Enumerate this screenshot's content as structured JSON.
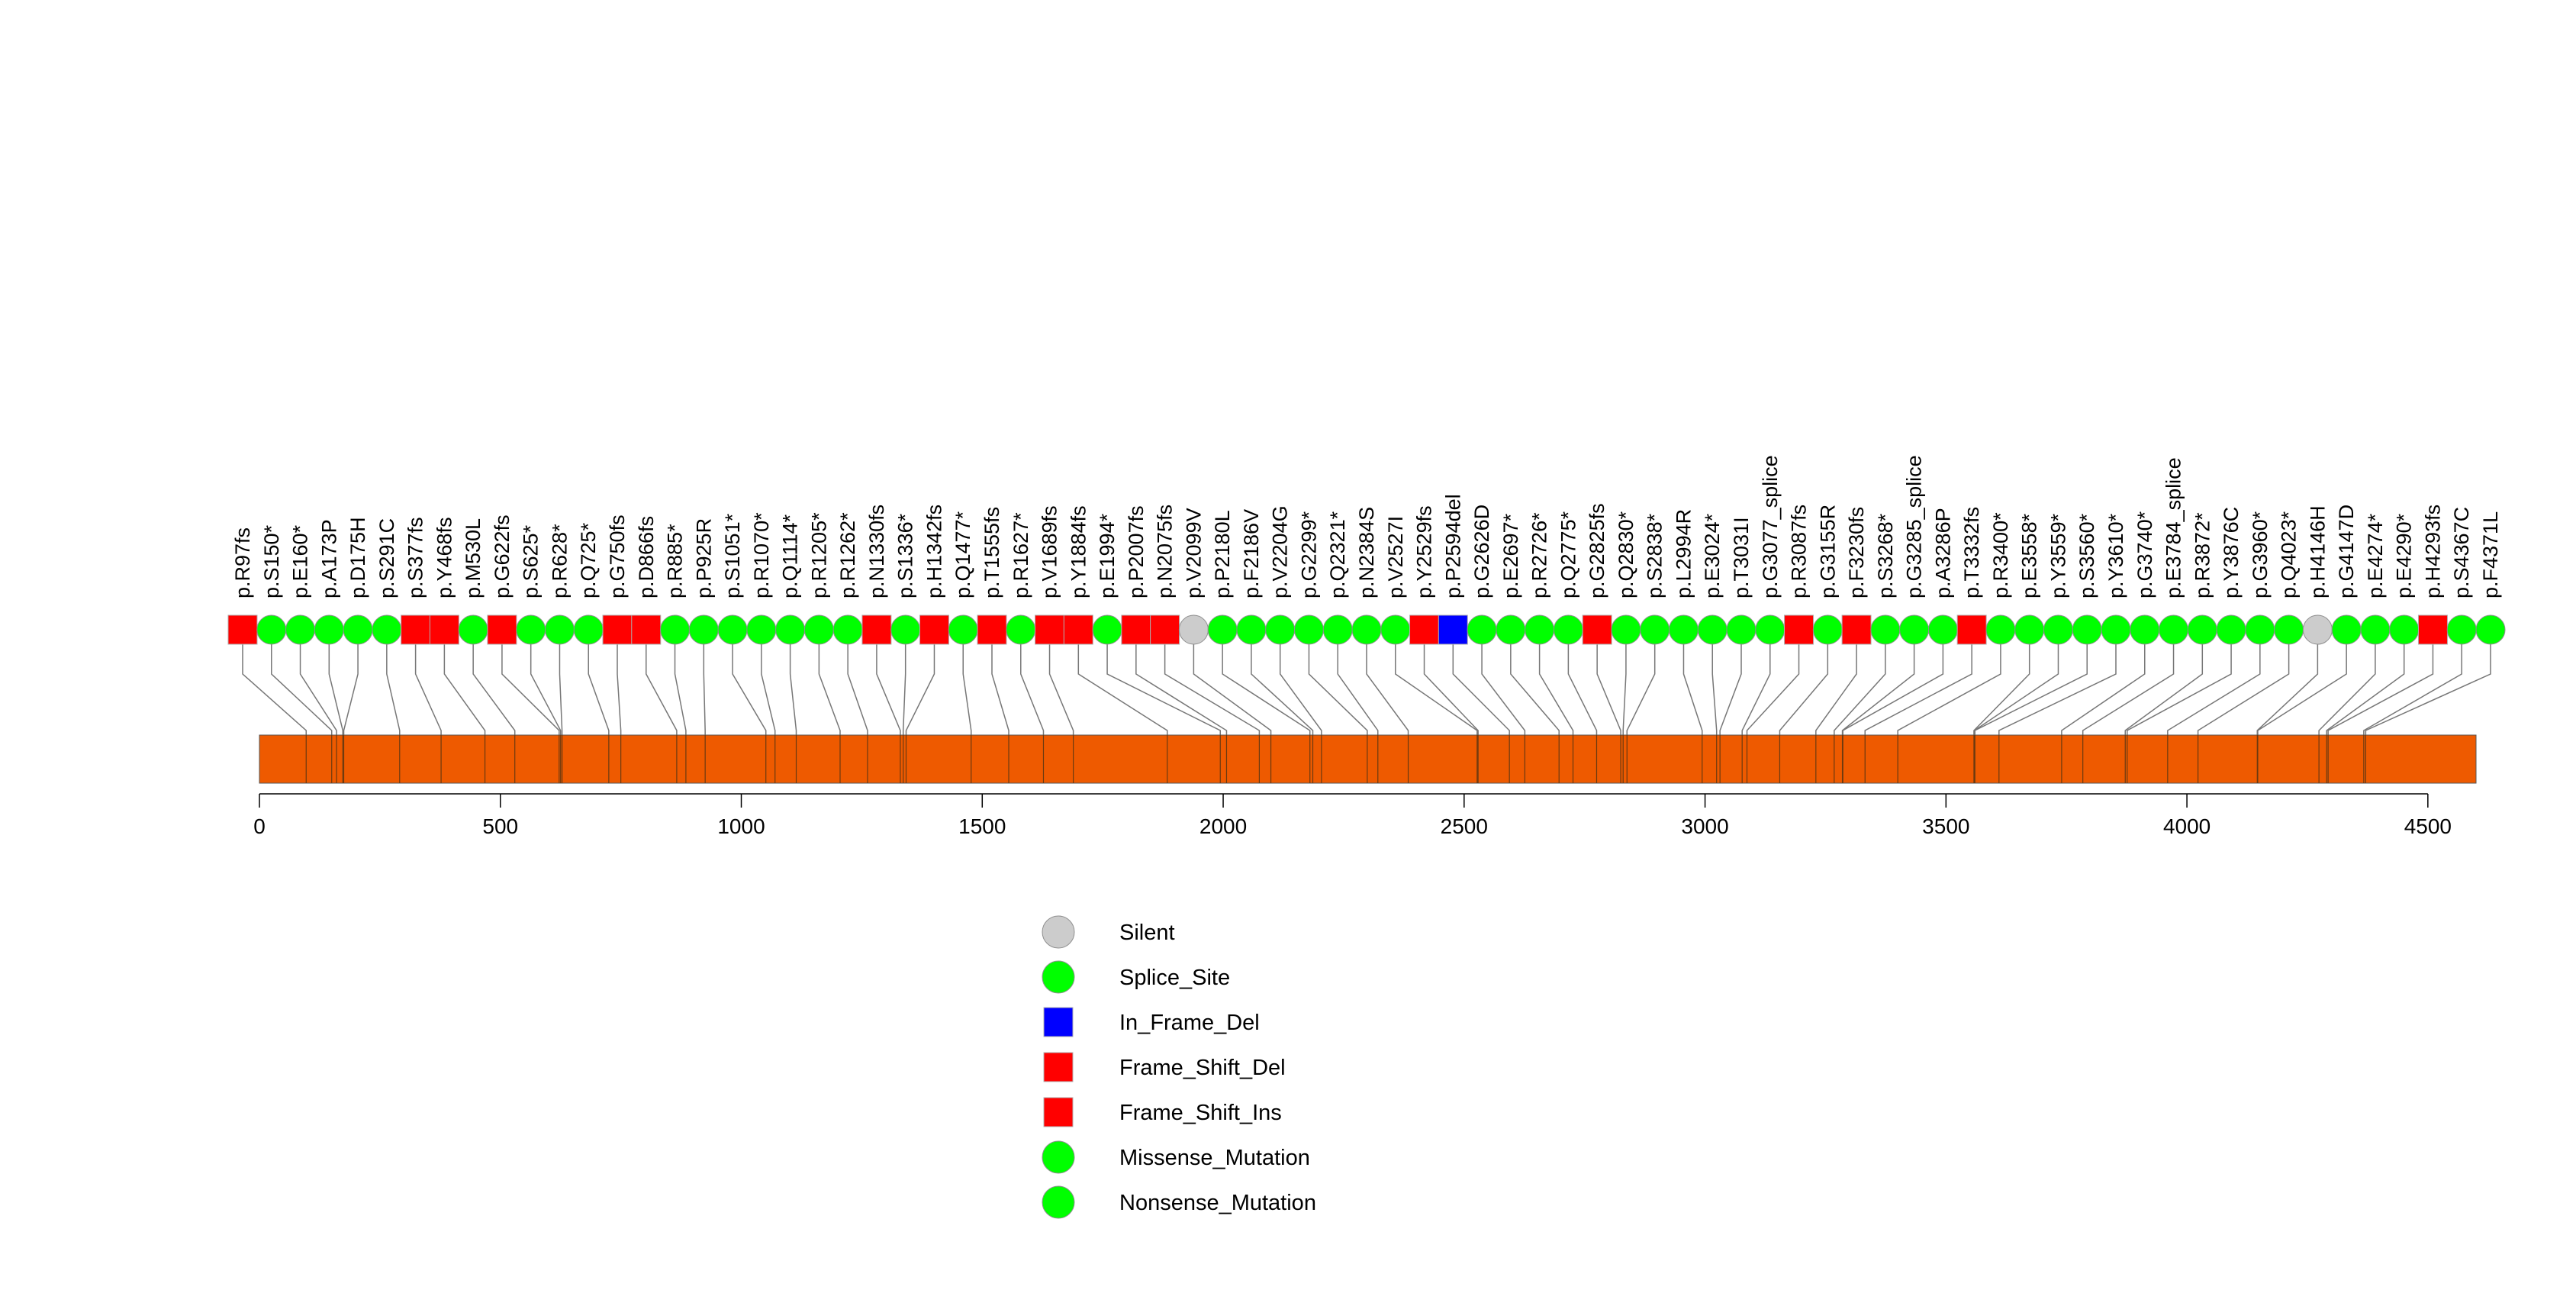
{
  "chart_data": {
    "type": "lollipop",
    "protein_length_bar": {
      "start": 0,
      "end": 4600,
      "color": "#ee5a00"
    },
    "x_axis": {
      "ticks": [
        0,
        500,
        1000,
        1500,
        2000,
        2500,
        3000,
        3500,
        4000,
        4500
      ],
      "xlim": [
        0,
        4600
      ]
    },
    "categories": {
      "Silent": {
        "shape": "circle",
        "color": "#cccccc"
      },
      "Splice_Site": {
        "shape": "circle",
        "color": "#00ff00"
      },
      "In_Frame_Del": {
        "shape": "square",
        "color": "#0000ff"
      },
      "Frame_Shift_Del": {
        "shape": "square",
        "color": "#ff0000"
      },
      "Frame_Shift_Ins": {
        "shape": "square",
        "color": "#ff0000"
      },
      "Missense_Mutation": {
        "shape": "circle",
        "color": "#00ff00"
      },
      "Nonsense_Mutation": {
        "shape": "circle",
        "color": "#00ff00"
      }
    },
    "legend": [
      "Silent",
      "Splice_Site",
      "In_Frame_Del",
      "Frame_Shift_Del",
      "Frame_Shift_Ins",
      "Missense_Mutation",
      "Nonsense_Mutation"
    ],
    "mutations": [
      {
        "label": "p.R97fs",
        "pos": 97,
        "type": "Frame_Shift_Del"
      },
      {
        "label": "p.S150*",
        "pos": 150,
        "type": "Nonsense_Mutation"
      },
      {
        "label": "p.E160*",
        "pos": 160,
        "type": "Nonsense_Mutation"
      },
      {
        "label": "p.A173P",
        "pos": 173,
        "type": "Missense_Mutation"
      },
      {
        "label": "p.D175H",
        "pos": 175,
        "type": "Missense_Mutation"
      },
      {
        "label": "p.S291C",
        "pos": 291,
        "type": "Missense_Mutation"
      },
      {
        "label": "p.S377fs",
        "pos": 377,
        "type": "Frame_Shift_Del"
      },
      {
        "label": "p.Y468fs",
        "pos": 468,
        "type": "Frame_Shift_Del"
      },
      {
        "label": "p.M530L",
        "pos": 530,
        "type": "Missense_Mutation"
      },
      {
        "label": "p.G622fs",
        "pos": 622,
        "type": "Frame_Shift_Del"
      },
      {
        "label": "p.S625*",
        "pos": 625,
        "type": "Nonsense_Mutation"
      },
      {
        "label": "p.R628*",
        "pos": 628,
        "type": "Nonsense_Mutation"
      },
      {
        "label": "p.Q725*",
        "pos": 725,
        "type": "Nonsense_Mutation"
      },
      {
        "label": "p.G750fs",
        "pos": 750,
        "type": "Frame_Shift_Del"
      },
      {
        "label": "p.D866fs",
        "pos": 866,
        "type": "Frame_Shift_Del"
      },
      {
        "label": "p.R885*",
        "pos": 885,
        "type": "Nonsense_Mutation"
      },
      {
        "label": "p.P925R",
        "pos": 925,
        "type": "Missense_Mutation"
      },
      {
        "label": "p.S1051*",
        "pos": 1051,
        "type": "Nonsense_Mutation"
      },
      {
        "label": "p.R1070*",
        "pos": 1070,
        "type": "Nonsense_Mutation"
      },
      {
        "label": "p.Q1114*",
        "pos": 1114,
        "type": "Nonsense_Mutation"
      },
      {
        "label": "p.R1205*",
        "pos": 1205,
        "type": "Nonsense_Mutation"
      },
      {
        "label": "p.R1262*",
        "pos": 1262,
        "type": "Nonsense_Mutation"
      },
      {
        "label": "p.N1330fs",
        "pos": 1330,
        "type": "Frame_Shift_Del"
      },
      {
        "label": "p.S1336*",
        "pos": 1336,
        "type": "Nonsense_Mutation"
      },
      {
        "label": "p.H1342fs",
        "pos": 1342,
        "type": "Frame_Shift_Del"
      },
      {
        "label": "p.Q1477*",
        "pos": 1477,
        "type": "Nonsense_Mutation"
      },
      {
        "label": "p.T1555fs",
        "pos": 1555,
        "type": "Frame_Shift_Del"
      },
      {
        "label": "p.R1627*",
        "pos": 1627,
        "type": "Nonsense_Mutation"
      },
      {
        "label": "p.V1689fs",
        "pos": 1689,
        "type": "Frame_Shift_Del"
      },
      {
        "label": "p.Y1884fs",
        "pos": 1884,
        "type": "Frame_Shift_Del"
      },
      {
        "label": "p.E1994*",
        "pos": 1994,
        "type": "Nonsense_Mutation"
      },
      {
        "label": "p.P2007fs",
        "pos": 2007,
        "type": "Frame_Shift_Del"
      },
      {
        "label": "p.N2075fs",
        "pos": 2075,
        "type": "Frame_Shift_Del"
      },
      {
        "label": "p.V2099V",
        "pos": 2099,
        "type": "Silent"
      },
      {
        "label": "p.P2180L",
        "pos": 2180,
        "type": "Missense_Mutation"
      },
      {
        "label": "p.F2186V",
        "pos": 2186,
        "type": "Missense_Mutation"
      },
      {
        "label": "p.V2204G",
        "pos": 2204,
        "type": "Missense_Mutation"
      },
      {
        "label": "p.G2299*",
        "pos": 2299,
        "type": "Nonsense_Mutation"
      },
      {
        "label": "p.Q2321*",
        "pos": 2321,
        "type": "Nonsense_Mutation"
      },
      {
        "label": "p.N2384S",
        "pos": 2384,
        "type": "Missense_Mutation"
      },
      {
        "label": "p.V2527I",
        "pos": 2527,
        "type": "Missense_Mutation"
      },
      {
        "label": "p.Y2529fs",
        "pos": 2529,
        "type": "Frame_Shift_Del"
      },
      {
        "label": "p.P2594del",
        "pos": 2594,
        "type": "In_Frame_Del"
      },
      {
        "label": "p.G2626D",
        "pos": 2626,
        "type": "Missense_Mutation"
      },
      {
        "label": "p.E2697*",
        "pos": 2697,
        "type": "Nonsense_Mutation"
      },
      {
        "label": "p.R2726*",
        "pos": 2726,
        "type": "Nonsense_Mutation"
      },
      {
        "label": "p.Q2775*",
        "pos": 2775,
        "type": "Nonsense_Mutation"
      },
      {
        "label": "p.G2825fs",
        "pos": 2825,
        "type": "Frame_Shift_Del"
      },
      {
        "label": "p.Q2830*",
        "pos": 2830,
        "type": "Nonsense_Mutation"
      },
      {
        "label": "p.S2838*",
        "pos": 2838,
        "type": "Nonsense_Mutation"
      },
      {
        "label": "p.L2994R",
        "pos": 2994,
        "type": "Missense_Mutation"
      },
      {
        "label": "p.E3024*",
        "pos": 3024,
        "type": "Nonsense_Mutation"
      },
      {
        "label": "p.T3031I",
        "pos": 3031,
        "type": "Missense_Mutation"
      },
      {
        "label": "p.G3077_splice",
        "pos": 3077,
        "type": "Splice_Site"
      },
      {
        "label": "p.R3087fs",
        "pos": 3087,
        "type": "Frame_Shift_Del"
      },
      {
        "label": "p.G3155R",
        "pos": 3155,
        "type": "Missense_Mutation"
      },
      {
        "label": "p.F3230fs",
        "pos": 3230,
        "type": "Frame_Shift_Del"
      },
      {
        "label": "p.S3268*",
        "pos": 3268,
        "type": "Nonsense_Mutation"
      },
      {
        "label": "p.G3285_splice",
        "pos": 3285,
        "type": "Splice_Site"
      },
      {
        "label": "p.A3286P",
        "pos": 3286,
        "type": "Missense_Mutation"
      },
      {
        "label": "p.T3332fs",
        "pos": 3332,
        "type": "Frame_Shift_Del"
      },
      {
        "label": "p.R3400*",
        "pos": 3400,
        "type": "Nonsense_Mutation"
      },
      {
        "label": "p.E3558*",
        "pos": 3558,
        "type": "Nonsense_Mutation"
      },
      {
        "label": "p.Y3559*",
        "pos": 3559,
        "type": "Nonsense_Mutation"
      },
      {
        "label": "p.S3560*",
        "pos": 3560,
        "type": "Nonsense_Mutation"
      },
      {
        "label": "p.Y3610*",
        "pos": 3610,
        "type": "Nonsense_Mutation"
      },
      {
        "label": "p.G3740*",
        "pos": 3740,
        "type": "Nonsense_Mutation"
      },
      {
        "label": "p.E3784_splice",
        "pos": 3784,
        "type": "Splice_Site"
      },
      {
        "label": "p.R3872*",
        "pos": 3872,
        "type": "Nonsense_Mutation"
      },
      {
        "label": "p.Y3876C",
        "pos": 3876,
        "type": "Missense_Mutation"
      },
      {
        "label": "p.G3960*",
        "pos": 3960,
        "type": "Nonsense_Mutation"
      },
      {
        "label": "p.Q4023*",
        "pos": 4023,
        "type": "Nonsense_Mutation"
      },
      {
        "label": "p.H4146H",
        "pos": 4146,
        "type": "Silent"
      },
      {
        "label": "p.G4147D",
        "pos": 4147,
        "type": "Missense_Mutation"
      },
      {
        "label": "p.E4274*",
        "pos": 4274,
        "type": "Nonsense_Mutation"
      },
      {
        "label": "p.E4290*",
        "pos": 4290,
        "type": "Nonsense_Mutation"
      },
      {
        "label": "p.H4293fs",
        "pos": 4293,
        "type": "Frame_Shift_Del"
      },
      {
        "label": "p.S4367C",
        "pos": 4367,
        "type": "Missense_Mutation"
      },
      {
        "label": "p.F4371L",
        "pos": 4371,
        "type": "Missense_Mutation"
      }
    ]
  }
}
